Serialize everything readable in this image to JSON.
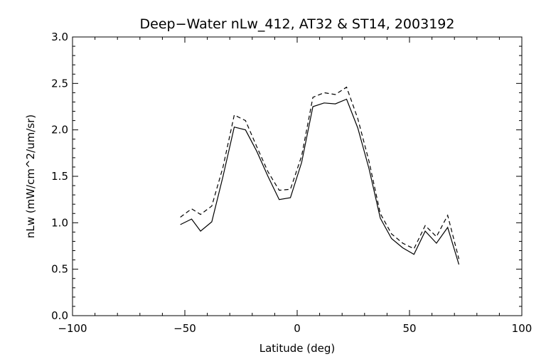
{
  "chart_data": {
    "type": "line",
    "title": "Deep−Water nLw_412, AT32 & ST14, 2003192",
    "xlabel": "Latitude (deg)",
    "ylabel": "nLw (mW/cm^2/um/sr)",
    "xlim": [
      -100,
      100
    ],
    "ylim": [
      0.0,
      3.0
    ],
    "xticks": [
      -100,
      -50,
      0,
      50,
      100
    ],
    "xtick_labels": [
      "−100",
      "−50",
      "0",
      "50",
      "100"
    ],
    "yticks": [
      0.0,
      0.5,
      1.0,
      1.5,
      2.0,
      2.5,
      3.0
    ],
    "ytick_labels": [
      "0.0",
      "0.5",
      "1.0",
      "1.5",
      "2.0",
      "2.5",
      "3.0"
    ],
    "grid": false,
    "colors": {
      "line": "#000000",
      "background": "#ffffff"
    },
    "series": [
      {
        "style": "solid",
        "x": [
          -52,
          -47,
          -43,
          -38,
          -33,
          -28,
          -23,
          -18,
          -13,
          -8,
          -3,
          2,
          7,
          12,
          17,
          22,
          27,
          32,
          37,
          42,
          47,
          52,
          57,
          62,
          67,
          72
        ],
        "y": [
          0.98,
          1.04,
          0.91,
          1.01,
          1.5,
          2.03,
          2.0,
          1.77,
          1.5,
          1.25,
          1.27,
          1.65,
          2.25,
          2.29,
          2.28,
          2.33,
          2.02,
          1.58,
          1.05,
          0.83,
          0.73,
          0.66,
          0.91,
          0.78,
          0.95,
          0.55
        ]
      },
      {
        "style": "dashed",
        "x": [
          -52,
          -47,
          -43,
          -38,
          -33,
          -28,
          -23,
          -18,
          -13,
          -8,
          -3,
          2,
          7,
          12,
          17,
          22,
          27,
          32,
          37,
          42,
          47,
          52,
          57,
          62,
          67,
          72
        ],
        "y": [
          1.06,
          1.15,
          1.09,
          1.18,
          1.6,
          2.16,
          2.1,
          1.82,
          1.55,
          1.35,
          1.36,
          1.72,
          2.35,
          2.4,
          2.38,
          2.46,
          2.12,
          1.66,
          1.1,
          0.88,
          0.78,
          0.72,
          0.97,
          0.85,
          1.08,
          0.61
        ]
      }
    ]
  }
}
